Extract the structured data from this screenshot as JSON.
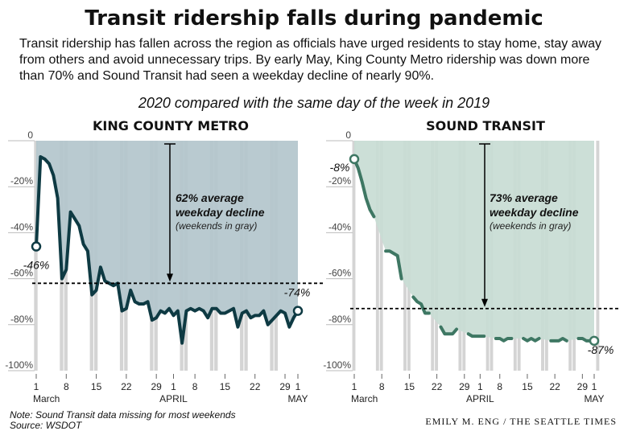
{
  "title": "Transit ridership falls during pandemic",
  "subtitle": "Transit ridership has fallen across the region as officials have urged residents to stay home, stay away from others and avoid unnecessary trips. By early May, King County Metro ridership was down more than 70% and Sound Transit had seen a weekday decline of nearly 90%.",
  "comparison_label": "2020 compared with the same day of the week in 2019",
  "footnote": {
    "note": "Note: Sound Transit data missing for most weekends",
    "source": "Source: WSDOT"
  },
  "credit": "EMILY M. ENG / THE SEATTLE TIMES",
  "colors": {
    "kcm_fill": "#b3c6cc",
    "kcm_line": "#0e3a43",
    "st_fill": "#c8dcd4",
    "st_line": "#3e7763",
    "weekend_bar": "#d4d4d4",
    "avg_line": "#000000"
  },
  "chart_data": [
    {
      "type": "line",
      "title": "KING COUNTY METRO",
      "ylim": [
        -100,
        0
      ],
      "x_range": [
        1,
        62
      ],
      "y_ticks": [
        0,
        -20,
        -40,
        -60,
        -80,
        -100
      ],
      "y_tick_labels": [
        "0",
        "-20%",
        "-40%",
        "-60%",
        "-80%",
        "-100%"
      ],
      "x_ticks": [
        1,
        8,
        15,
        22,
        29,
        33,
        38,
        45,
        52,
        59,
        62
      ],
      "x_tick_labels": [
        "1",
        "8",
        "15",
        "22",
        "29",
        "1",
        "8",
        "15",
        "22",
        "29",
        "1"
      ],
      "month_labels": [
        {
          "day": 1,
          "text": "March"
        },
        {
          "day": 33,
          "text": "APRIL"
        },
        {
          "day": 62,
          "text": "MAY"
        }
      ],
      "weekend_days": [
        1,
        7,
        8,
        14,
        15,
        21,
        22,
        28,
        29,
        35,
        36,
        42,
        43,
        49,
        50,
        56,
        57
      ],
      "average": -62,
      "annotation": {
        "lines": [
          "62% average",
          "weekday decline"
        ],
        "sub": "(weekends in gray)"
      },
      "start_label": "-46%",
      "end_label": "-74%",
      "series": [
        {
          "x": [
            1,
            2,
            3,
            4,
            5,
            6,
            7,
            8,
            9,
            10,
            11,
            12,
            13,
            14,
            15,
            16,
            17,
            18,
            19,
            20,
            21,
            22,
            23,
            24,
            25,
            26,
            27,
            28,
            29,
            30,
            31,
            32,
            33,
            34,
            35,
            36,
            37,
            38,
            39,
            40,
            41,
            42,
            43,
            44,
            45,
            46,
            47,
            48,
            49,
            50,
            51,
            52,
            53,
            54,
            55,
            56,
            57,
            58,
            59,
            60,
            61,
            62
          ],
          "y": [
            -46,
            -7,
            -8,
            -10,
            -15,
            -25,
            -60,
            -56,
            -31,
            -34,
            -37,
            -45,
            -48,
            -67,
            -65,
            -55,
            -61,
            -62,
            -63,
            -62,
            -74,
            -73,
            -65,
            -70,
            -71,
            -71,
            -70,
            -78,
            -77,
            -74,
            -75,
            -73,
            -76,
            -74,
            -88,
            -74,
            -73,
            -74,
            -73,
            -74,
            -77,
            -73,
            -73,
            -75,
            -75,
            -74,
            -73,
            -81,
            -75,
            -74,
            -77,
            -76,
            -76,
            -74,
            -80,
            -78,
            -76,
            -74,
            -75,
            -81,
            -77,
            -74
          ]
        }
      ]
    },
    {
      "type": "line",
      "title": "SOUND TRANSIT",
      "ylim": [
        -100,
        0
      ],
      "x_range": [
        1,
        62
      ],
      "y_ticks": [
        0,
        -20,
        -40,
        -60,
        -80,
        -100
      ],
      "y_tick_labels": [
        "0",
        "-20%",
        "-40%",
        "-60%",
        "-80%",
        "-100%"
      ],
      "x_ticks": [
        1,
        8,
        15,
        22,
        29,
        33,
        38,
        45,
        52,
        59,
        62
      ],
      "x_tick_labels": [
        "1",
        "8",
        "15",
        "22",
        "29",
        "1",
        "8",
        "15",
        "22",
        "29",
        "1"
      ],
      "month_labels": [
        {
          "day": 1,
          "text": "March"
        },
        {
          "day": 33,
          "text": "APRIL"
        },
        {
          "day": 62,
          "text": "MAY"
        }
      ],
      "weekend_days": [
        1,
        7,
        8,
        14,
        15,
        21,
        22,
        28,
        29,
        35,
        36,
        42,
        43,
        49,
        50,
        56,
        57,
        63
      ],
      "average": -73,
      "annotation": {
        "lines": [
          "73% average",
          "weekday decline"
        ],
        "sub": "(weekends in gray)"
      },
      "start_label": "-8%",
      "end_label": "-87%",
      "series": [
        {
          "x": [
            1,
            2,
            3,
            4,
            5,
            6,
            9,
            10,
            11,
            12,
            13,
            16,
            17,
            18,
            19,
            20,
            23,
            24,
            25,
            26,
            27,
            30,
            31,
            32,
            33,
            34,
            37,
            38,
            39,
            40,
            41,
            44,
            45,
            46,
            47,
            48,
            51,
            52,
            53,
            54,
            55,
            58,
            59,
            60,
            61,
            62
          ],
          "y": [
            -8,
            -12,
            -18,
            -25,
            -30,
            -33,
            -48,
            -48,
            -49,
            -50,
            -60,
            -68,
            -70,
            -71,
            -75,
            -75,
            -81,
            -84,
            -84,
            -84,
            -82,
            -84,
            -85,
            -85,
            -85,
            -85,
            -86,
            -86,
            -87,
            -86,
            -86,
            -86,
            -87,
            -86,
            -87,
            -86,
            -87,
            -87,
            -87,
            -86,
            -87,
            -86,
            -86,
            -87,
            -87,
            -87
          ]
        }
      ]
    }
  ]
}
